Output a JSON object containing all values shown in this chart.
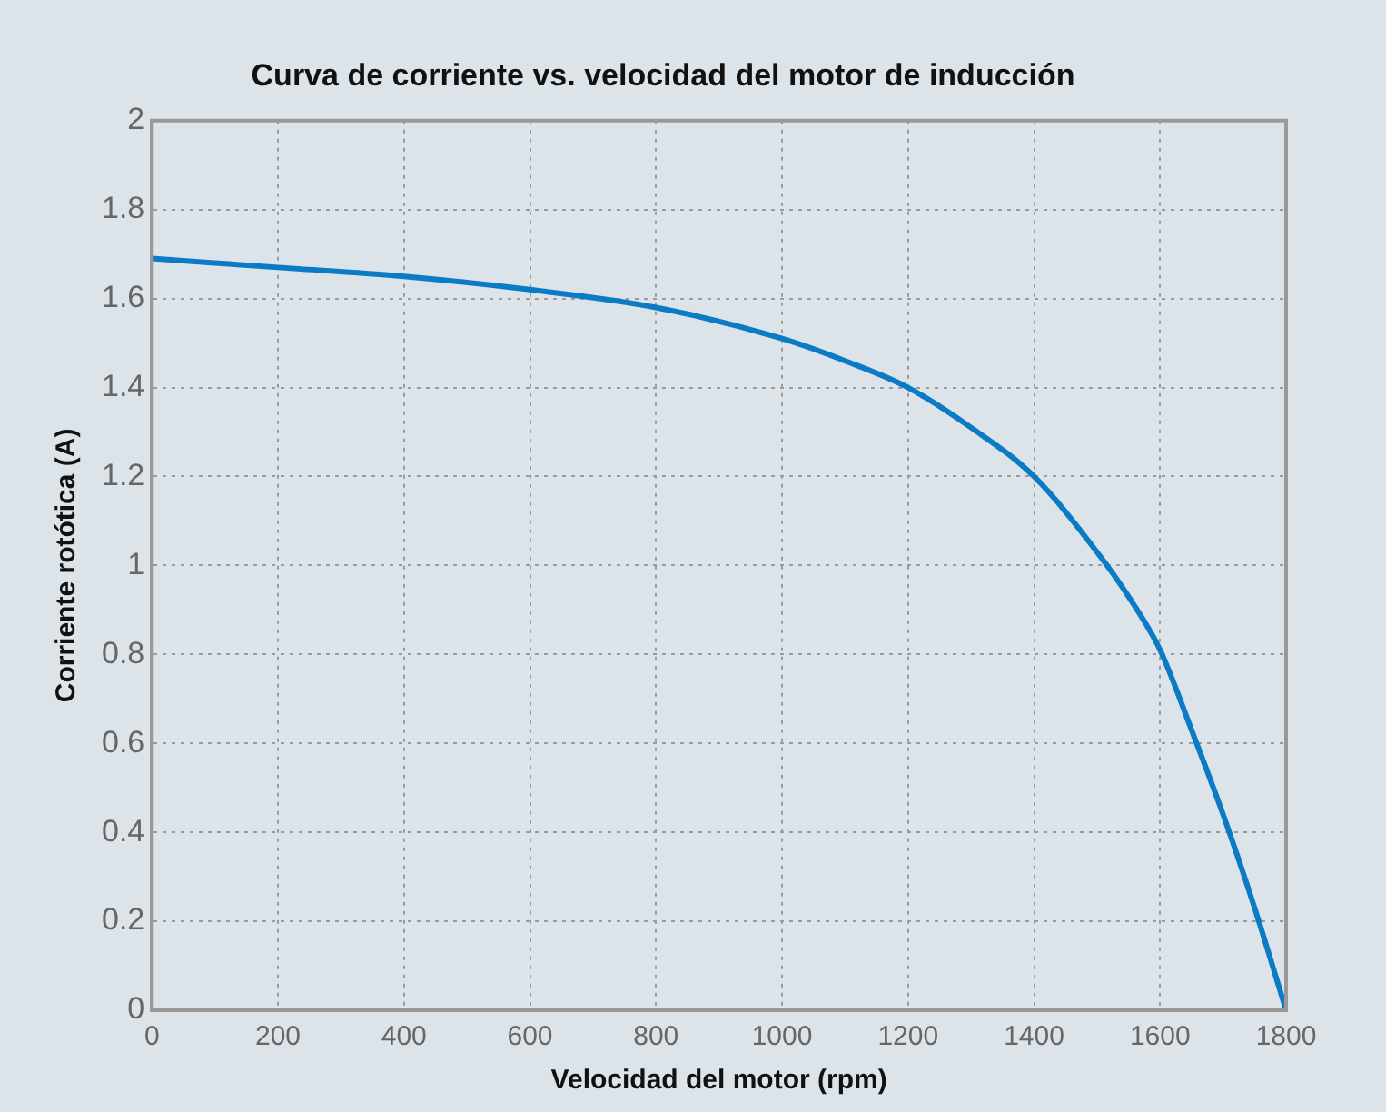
{
  "chart_data": {
    "type": "line",
    "title": "Curva de corriente vs. velocidad del motor de inducción",
    "xlabel": "Velocidad del motor (rpm)",
    "ylabel": "Corriente rotótica (A)",
    "x": [
      0,
      200,
      400,
      600,
      800,
      1000,
      1100,
      1200,
      1300,
      1400,
      1500,
      1550,
      1600,
      1650,
      1700,
      1750,
      1800
    ],
    "series": [
      {
        "color": "#0a7bc4",
        "values": [
          1.69,
          1.67,
          1.65,
          1.62,
          1.58,
          1.51,
          1.46,
          1.4,
          1.31,
          1.2,
          1.03,
          0.93,
          0.81,
          0.63,
          0.44,
          0.23,
          0
        ]
      }
    ],
    "xlim": [
      0,
      1800
    ],
    "xticks": [
      0,
      200,
      400,
      600,
      800,
      1000,
      1200,
      1400,
      1600,
      1800
    ],
    "ylim": [
      0,
      2
    ],
    "yticks": [
      0,
      0.2,
      0.4,
      0.6,
      0.8,
      1,
      1.2,
      1.4,
      1.6,
      1.8,
      2
    ],
    "grid": true,
    "legend": false,
    "marker": "none",
    "line_style": "solid"
  }
}
